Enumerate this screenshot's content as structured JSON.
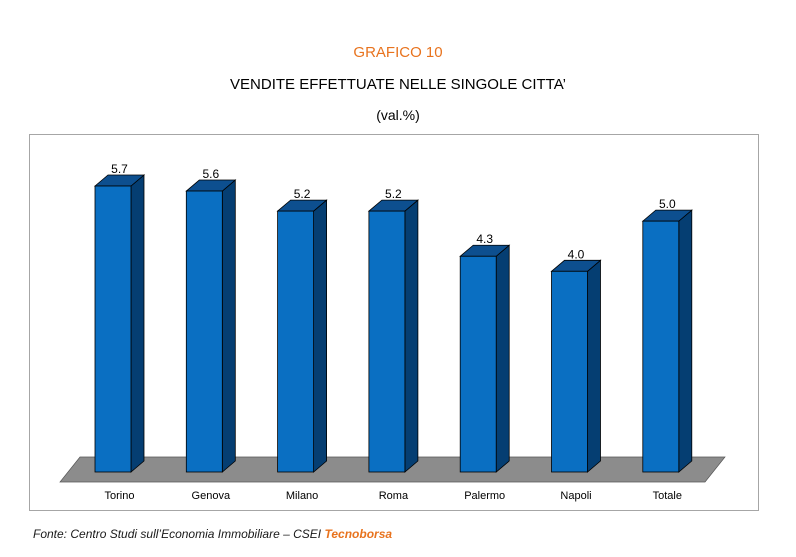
{
  "header": {
    "grafico": "GRAFICO 10",
    "title": "VENDITE EFFETTUATE NELLE SINGOLE CITTA’",
    "subtitle": "(val.%)"
  },
  "source": {
    "prefix": "Fonte: Centro Studi sull’Economia Immobiliare – CSEI",
    "brand": "Tecnoborsa"
  },
  "colors": {
    "bar_front": "#0a6fc2",
    "bar_side": "#053e72",
    "bar_top": "#0d4f8f",
    "floor": "#8c8c8c",
    "accent": "#e8731e"
  },
  "chart_data": {
    "type": "bar",
    "categories": [
      "Torino",
      "Genova",
      "Milano",
      "Roma",
      "Palermo",
      "Napoli",
      "Totale"
    ],
    "values": [
      5.7,
      5.6,
      5.2,
      5.2,
      4.3,
      4.0,
      5.0
    ],
    "value_labels": [
      "5.7",
      "5.6",
      "5.2",
      "5.2",
      "4.3",
      "4.0",
      "5.0"
    ],
    "ylim": [
      0,
      6
    ],
    "grid": false,
    "legend": "none",
    "style": "3d"
  }
}
